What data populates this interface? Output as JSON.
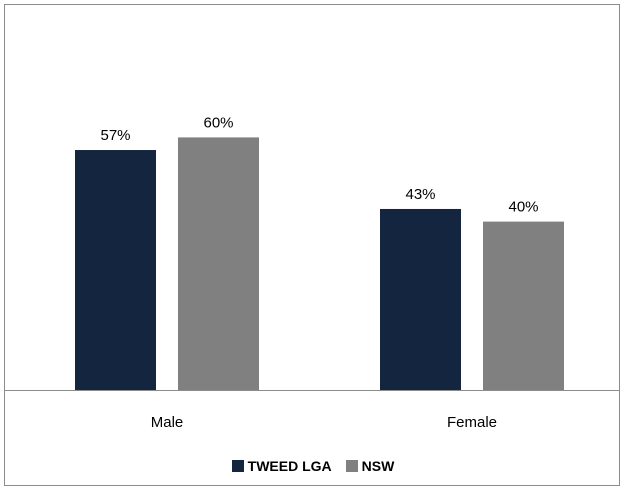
{
  "chart_data": {
    "type": "bar",
    "categories": [
      "Male",
      "Female"
    ],
    "series": [
      {
        "name": "TWEED LGA",
        "values": [
          57,
          43
        ],
        "color": "#13253f"
      },
      {
        "name": "NSW",
        "values": [
          60,
          40
        ],
        "color": "#808080"
      }
    ],
    "data_labels": [
      [
        "57%",
        "43%"
      ],
      [
        "60%",
        "40%"
      ]
    ],
    "ylim": [
      0,
      70
    ],
    "grid": false,
    "legend_position": "bottom"
  }
}
